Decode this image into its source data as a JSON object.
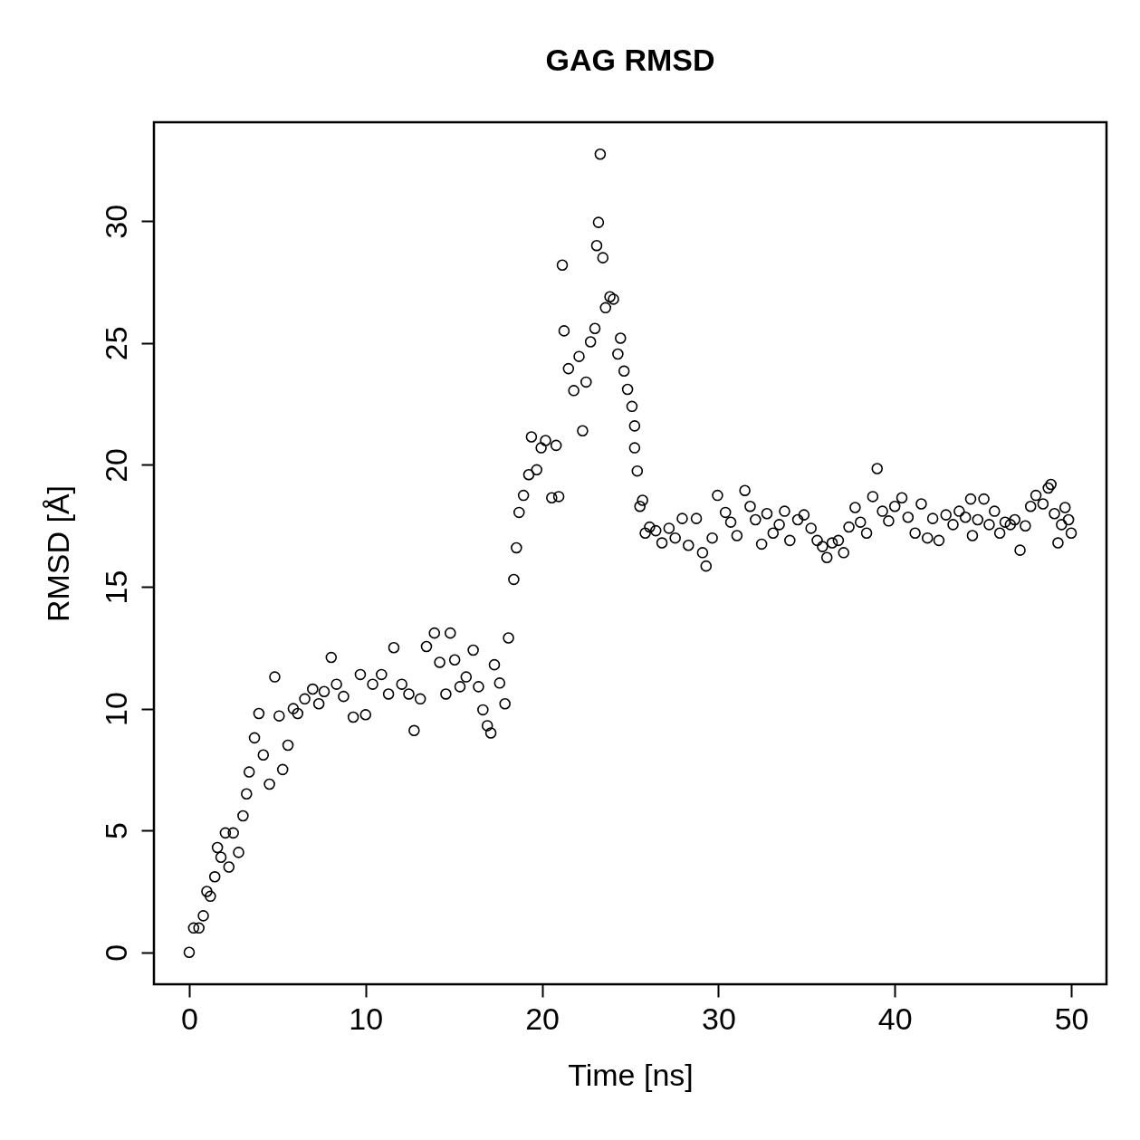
{
  "chart_data": {
    "type": "scatter",
    "title": "GAG RMSD",
    "xlabel": "Time [ns]",
    "ylabel": "RMSD [Å]",
    "color": "#000000",
    "marker": "circle",
    "xlim": [
      -2,
      52
    ],
    "ylim": [
      -1.31,
      34.06
    ],
    "xticks": [
      0,
      10,
      20,
      30,
      40,
      50
    ],
    "yticks": [
      0,
      5,
      10,
      15,
      20,
      25,
      30
    ],
    "x": [
      0,
      0.25,
      0.55,
      0.8,
      1.0,
      1.2,
      1.45,
      1.6,
      1.8,
      2.05,
      2.25,
      2.5,
      2.8,
      3.05,
      3.25,
      3.4,
      3.7,
      3.95,
      4.2,
      4.55,
      4.85,
      5.1,
      5.3,
      5.6,
      5.9,
      6.15,
      6.55,
      7.0,
      7.35,
      7.65,
      8.05,
      8.35,
      8.75,
      9.3,
      9.7,
      10.0,
      10.4,
      10.9,
      11.3,
      11.6,
      12.05,
      12.45,
      12.75,
      13.1,
      13.45,
      13.9,
      14.2,
      14.55,
      14.8,
      15.05,
      15.35,
      15.7,
      16.1,
      16.4,
      16.65,
      16.9,
      17.1,
      17.3,
      17.6,
      17.9,
      18.1,
      18.4,
      18.55,
      18.7,
      18.95,
      19.25,
      19.4,
      19.7,
      19.95,
      20.2,
      20.55,
      20.8,
      20.95,
      21.15,
      21.25,
      21.5,
      21.8,
      22.1,
      22.3,
      22.5,
      22.75,
      23.0,
      23.1,
      23.2,
      23.3,
      23.45,
      23.6,
      23.85,
      24.05,
      24.3,
      24.45,
      24.65,
      24.85,
      25.1,
      25.25,
      25.25,
      25.4,
      25.55,
      25.7,
      25.85,
      26.1,
      26.45,
      26.8,
      27.2,
      27.55,
      27.95,
      28.3,
      28.75,
      29.1,
      29.3,
      29.65,
      29.95,
      30.4,
      30.7,
      31.05,
      31.5,
      31.8,
      32.1,
      32.45,
      32.75,
      33.1,
      33.45,
      33.75,
      34.05,
      34.5,
      34.85,
      35.25,
      35.6,
      35.9,
      36.15,
      36.45,
      36.8,
      37.1,
      37.4,
      37.75,
      38.05,
      38.4,
      38.75,
      39.0,
      39.3,
      39.65,
      40.0,
      40.4,
      40.75,
      41.15,
      41.5,
      41.85,
      42.15,
      42.5,
      42.9,
      43.3,
      43.65,
      44.0,
      44.3,
      44.4,
      44.7,
      45.05,
      45.35,
      45.65,
      45.95,
      46.25,
      46.55,
      46.8,
      47.1,
      47.4,
      47.7,
      48.0,
      48.4,
      48.7,
      48.85,
      49.05,
      49.25,
      49.45,
      49.65,
      49.85,
      50.0
    ],
    "values": [
      0,
      1.0,
      1.0,
      1.5,
      2.5,
      2.3,
      3.1,
      4.3,
      3.9,
      4.9,
      3.5,
      4.9,
      4.1,
      5.6,
      6.5,
      7.4,
      8.8,
      9.8,
      8.1,
      6.9,
      11.3,
      9.7,
      7.5,
      8.5,
      10.0,
      9.8,
      10.4,
      10.8,
      10.2,
      10.7,
      12.1,
      11.0,
      10.5,
      9.65,
      11.4,
      9.75,
      11.0,
      11.4,
      10.6,
      12.5,
      11.0,
      10.6,
      9.1,
      10.4,
      12.55,
      13.1,
      11.9,
      10.6,
      13.1,
      12.0,
      10.9,
      11.3,
      12.4,
      10.9,
      9.95,
      9.3,
      9.0,
      11.8,
      11.05,
      10.2,
      12.9,
      15.3,
      16.6,
      18.05,
      18.75,
      19.6,
      21.15,
      19.8,
      20.7,
      21.0,
      18.65,
      20.8,
      18.7,
      28.2,
      25.5,
      23.95,
      23.05,
      24.45,
      21.4,
      23.4,
      25.05,
      25.6,
      29.0,
      29.95,
      32.75,
      28.5,
      26.45,
      26.9,
      26.8,
      24.55,
      25.2,
      23.85,
      23.1,
      22.4,
      21.6,
      20.7,
      19.75,
      18.3,
      18.55,
      17.2,
      17.45,
      17.3,
      16.8,
      17.4,
      17.0,
      17.8,
      16.7,
      17.8,
      16.4,
      15.85,
      17.0,
      18.75,
      18.05,
      17.65,
      17.1,
      18.95,
      18.3,
      17.75,
      16.75,
      18.0,
      17.2,
      17.55,
      18.1,
      16.9,
      17.75,
      17.95,
      17.4,
      16.9,
      16.65,
      16.2,
      16.8,
      16.9,
      16.4,
      17.45,
      18.25,
      17.65,
      17.2,
      18.7,
      19.85,
      18.1,
      17.7,
      18.3,
      18.65,
      17.85,
      17.2,
      18.4,
      17.0,
      17.8,
      16.9,
      17.95,
      17.55,
      18.1,
      17.85,
      18.6,
      17.1,
      17.75,
      18.6,
      17.55,
      18.1,
      17.2,
      17.65,
      17.55,
      17.75,
      16.5,
      17.5,
      18.3,
      18.75,
      18.4,
      19.05,
      19.2,
      18.0,
      16.8,
      17.55,
      18.25,
      17.75,
      17.2
    ]
  }
}
